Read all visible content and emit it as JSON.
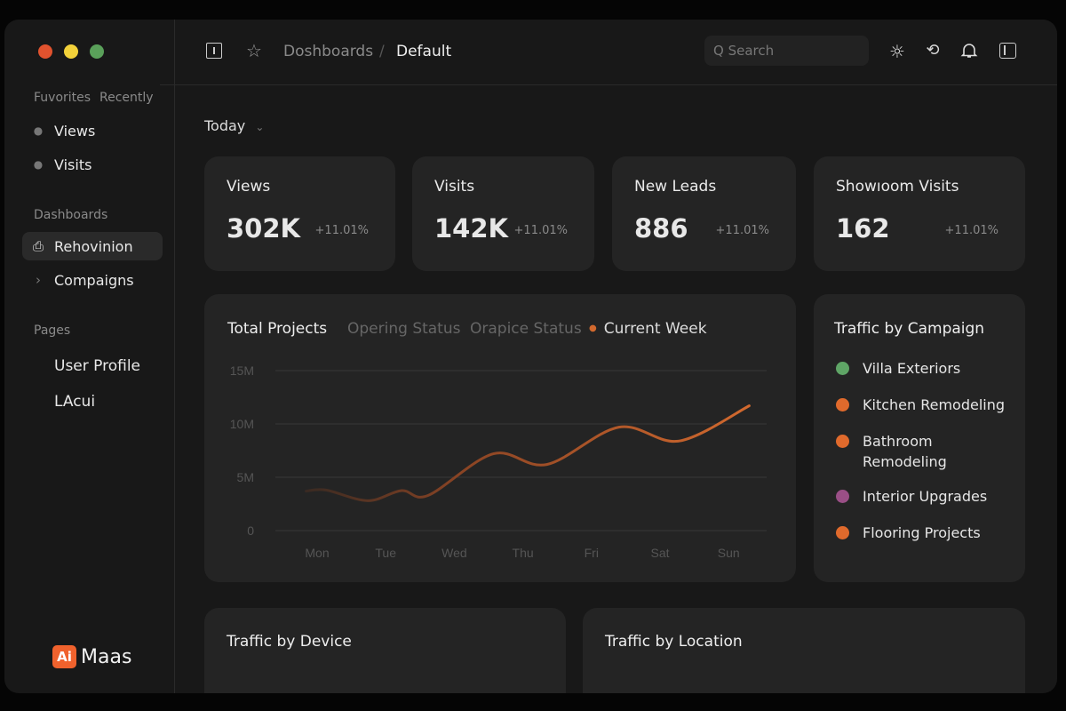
{
  "window_controls": {
    "close": "#e0522e",
    "minimize": "#f2d13a",
    "maximize": "#5aa05a"
  },
  "sidebar": {
    "tabs": [
      "Fuvorites",
      "Recently"
    ],
    "favorites": [
      {
        "label": "Views"
      },
      {
        "label": "Visits"
      }
    ],
    "dashboards_heading": "Dashboards",
    "dashboards": [
      {
        "label": "Rehovinion",
        "icon": "dashboard-icon",
        "active": true
      },
      {
        "label": "Compaigns",
        "icon": "chevron-right-icon"
      }
    ],
    "pages_heading": "Pages",
    "pages": [
      {
        "label": "User Profile"
      },
      {
        "label": "LAcui"
      }
    ],
    "logo": {
      "badge": "Ai",
      "name": "Maas",
      "color": "#f0622d"
    }
  },
  "header": {
    "breadcrumb": [
      "Doshboards",
      "/",
      "Default"
    ],
    "search_placeholder": "Q Search",
    "icons": [
      "sun-icon",
      "history-icon",
      "bell-icon",
      "sidebar-toggle-icon"
    ]
  },
  "filter": {
    "label": "Today"
  },
  "stats": [
    {
      "title": "Views",
      "value": "302K",
      "delta": "+11.01%"
    },
    {
      "title": "Visits",
      "value": "142K",
      "delta": "+11.01%"
    },
    {
      "title": "New Leads",
      "value": "886",
      "delta": "+11.01%"
    },
    {
      "title": "Showıoom Visits",
      "value": "162",
      "delta": "+11.01%"
    }
  ],
  "chart_tabs": [
    "Total Projects",
    "Opering Status",
    "Orapice Status",
    "Current Week"
  ],
  "chart_data": {
    "type": "line",
    "title": "Total Projects",
    "categories": [
      "Mon",
      "Tue",
      "Wed",
      "Thu",
      "Fri",
      "Sat",
      "Sun"
    ],
    "y_ticks": [
      "0",
      "5M",
      "10M",
      "15M"
    ],
    "ylim": [
      0,
      15
    ],
    "y_unit": "M",
    "grid": true,
    "series": [
      {
        "name": "Current Week",
        "color": "#d2692e",
        "points": [
          [
            -0.16,
            3.7
          ],
          [
            0.13,
            3.8
          ],
          [
            0.74,
            2.8
          ],
          [
            1.23,
            3.75
          ],
          [
            1.62,
            3.3
          ],
          [
            2.57,
            7.2
          ],
          [
            3.35,
            6.2
          ],
          [
            4.4,
            9.7
          ],
          [
            5.28,
            8.4
          ],
          [
            6.3,
            11.7
          ]
        ]
      }
    ]
  },
  "campaigns": {
    "title": "Traffic by Campaign",
    "items": [
      {
        "label": "Villa Exteriors",
        "color": "#5fa566"
      },
      {
        "label": "Kitchen Remodeling",
        "color": "#e06a2c"
      },
      {
        "label": "Bathroom Remodeling",
        "color": "#e06a2c"
      },
      {
        "label": "Interior Upgrades",
        "color": "#9a4f86"
      },
      {
        "label": "Flooring Projects",
        "color": "#e06a2c"
      }
    ]
  },
  "bottom": {
    "device_title": "Traffic by Device",
    "location_title": "Traffic by Location"
  }
}
